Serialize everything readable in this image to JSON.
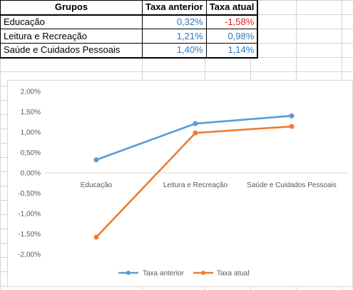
{
  "table": {
    "headers": [
      "Grupos",
      "Taxa anterior",
      "Taxa atual"
    ],
    "rows": [
      {
        "grupo": "Educação",
        "anterior": "0,32%",
        "atual": "-1,58%"
      },
      {
        "grupo": "Leitura e Recreação",
        "anterior": "1,21%",
        "atual": "0,98%"
      },
      {
        "grupo": "Saúde e Cuidados Pessoais",
        "anterior": "1,40%",
        "atual": "1,14%"
      }
    ]
  },
  "colors": {
    "series1": "#5b9bd5",
    "series2": "#ed7d31",
    "negative": "#e41a1a",
    "positive": "#2e75b6"
  },
  "chart_data": {
    "type": "line",
    "categories": [
      "Educação",
      "Leitura e Recreação",
      "Saúde e Cuidados Pessoais"
    ],
    "series": [
      {
        "name": "Taxa anterior",
        "values": [
          0.32,
          1.21,
          1.4
        ]
      },
      {
        "name": "Taxa atual",
        "values": [
          -1.58,
          0.98,
          1.14
        ]
      }
    ],
    "ylim": [
      -2.0,
      2.0
    ],
    "yticks": [
      "2,00%",
      "1,50%",
      "1,00%",
      "0,50%",
      "0,00%",
      "-0,50%",
      "-1,00%",
      "-1,50%",
      "-2,00%"
    ],
    "ytick_values": [
      2.0,
      1.5,
      1.0,
      0.5,
      0.0,
      -0.5,
      -1.0,
      -1.5,
      -2.0
    ],
    "grid": false,
    "legend": "bottom"
  }
}
